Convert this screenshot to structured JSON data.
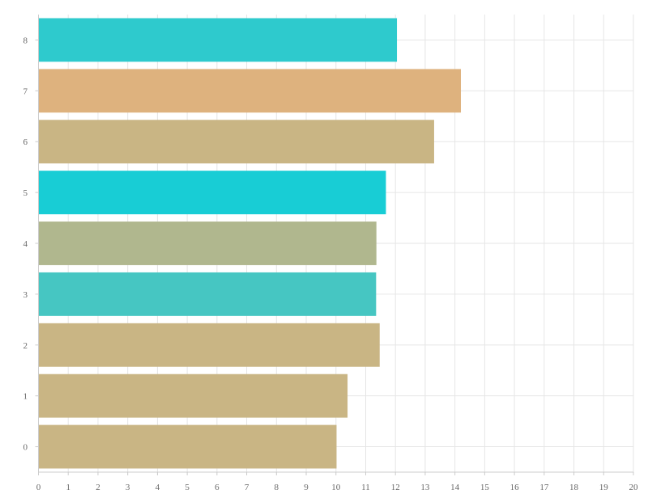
{
  "chart_data": {
    "type": "bar",
    "orientation": "horizontal",
    "categories": [
      "0",
      "1",
      "2",
      "3",
      "4",
      "5",
      "6",
      "7",
      "8"
    ],
    "values": [
      10.02,
      10.39,
      11.47,
      11.35,
      11.36,
      11.68,
      13.3,
      14.2,
      12.05
    ],
    "colors": [
      "#c9b584",
      "#c9b584",
      "#c9b584",
      "#46c6c2",
      "#b0b78e",
      "#18cdd5",
      "#c9b584",
      "#deb27e",
      "#2ecacd"
    ],
    "x_ticks": [
      "0",
      "1",
      "2",
      "3",
      "4",
      "5",
      "6",
      "7",
      "8",
      "9",
      "10",
      "11",
      "12",
      "13",
      "14",
      "15",
      "16",
      "17",
      "18",
      "19",
      "20"
    ],
    "xlim": [
      0,
      20
    ],
    "grid": true,
    "title": "",
    "xlabel": "",
    "ylabel": ""
  }
}
